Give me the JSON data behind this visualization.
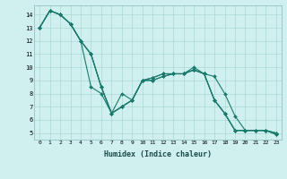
{
  "xlabel": "Humidex (Indice chaleur)",
  "ylabel": "",
  "bg_color": "#cff0ee",
  "grid_color": "#aad8d4",
  "line_color": "#1a7a6e",
  "xlim": [
    -0.5,
    23.5
  ],
  "ylim": [
    4.5,
    14.7
  ],
  "xticks": [
    0,
    1,
    2,
    3,
    4,
    5,
    6,
    7,
    8,
    9,
    10,
    11,
    12,
    13,
    14,
    15,
    16,
    17,
    18,
    19,
    20,
    21,
    22,
    23
  ],
  "yticks": [
    5,
    6,
    7,
    8,
    9,
    10,
    11,
    12,
    13,
    14
  ],
  "series": [
    {
      "x": [
        0,
        1,
        2,
        3,
        4,
        5,
        6,
        7,
        8,
        9,
        10,
        11,
        12,
        13,
        14,
        15,
        16,
        17,
        18,
        19,
        20,
        21,
        22,
        23
      ],
      "y": [
        13.0,
        14.3,
        14.0,
        13.3,
        12.0,
        11.0,
        8.5,
        6.5,
        7.0,
        7.5,
        9.0,
        9.0,
        9.3,
        9.5,
        9.5,
        10.0,
        9.5,
        9.3,
        8.0,
        6.3,
        5.2,
        5.2,
        5.2,
        5.0
      ]
    },
    {
      "x": [
        0,
        1,
        2,
        3,
        4,
        5,
        6,
        7,
        8,
        9,
        10,
        11,
        12,
        13,
        14,
        15,
        16,
        17,
        18,
        19,
        20,
        21,
        22,
        23
      ],
      "y": [
        13.0,
        14.3,
        14.0,
        13.3,
        12.0,
        8.5,
        8.0,
        6.5,
        8.0,
        7.5,
        9.0,
        9.0,
        9.3,
        9.5,
        9.5,
        9.8,
        9.5,
        7.5,
        6.5,
        5.2,
        5.2,
        5.2,
        5.2,
        5.0
      ]
    },
    {
      "x": [
        0,
        1,
        2,
        3,
        4,
        5,
        6,
        7,
        8,
        9,
        10,
        11,
        12,
        13,
        14,
        15,
        16,
        17,
        18,
        19,
        20,
        21,
        22,
        23
      ],
      "y": [
        13.0,
        14.3,
        14.0,
        13.3,
        12.0,
        11.0,
        8.5,
        6.5,
        7.0,
        7.5,
        9.0,
        9.2,
        9.5,
        9.5,
        9.5,
        9.8,
        9.5,
        7.5,
        6.5,
        5.2,
        5.2,
        5.2,
        5.2,
        4.9
      ]
    },
    {
      "x": [
        0,
        1,
        2,
        3,
        4,
        5,
        6,
        7,
        8,
        9,
        10,
        11,
        12,
        13,
        14,
        15,
        16,
        17,
        18,
        19,
        20,
        21,
        22,
        23
      ],
      "y": [
        13.0,
        14.3,
        14.0,
        13.3,
        12.0,
        11.0,
        8.5,
        6.5,
        7.0,
        7.5,
        9.0,
        9.2,
        9.5,
        9.5,
        9.5,
        9.8,
        9.5,
        7.5,
        6.5,
        5.2,
        5.2,
        5.2,
        5.2,
        4.9
      ]
    }
  ]
}
